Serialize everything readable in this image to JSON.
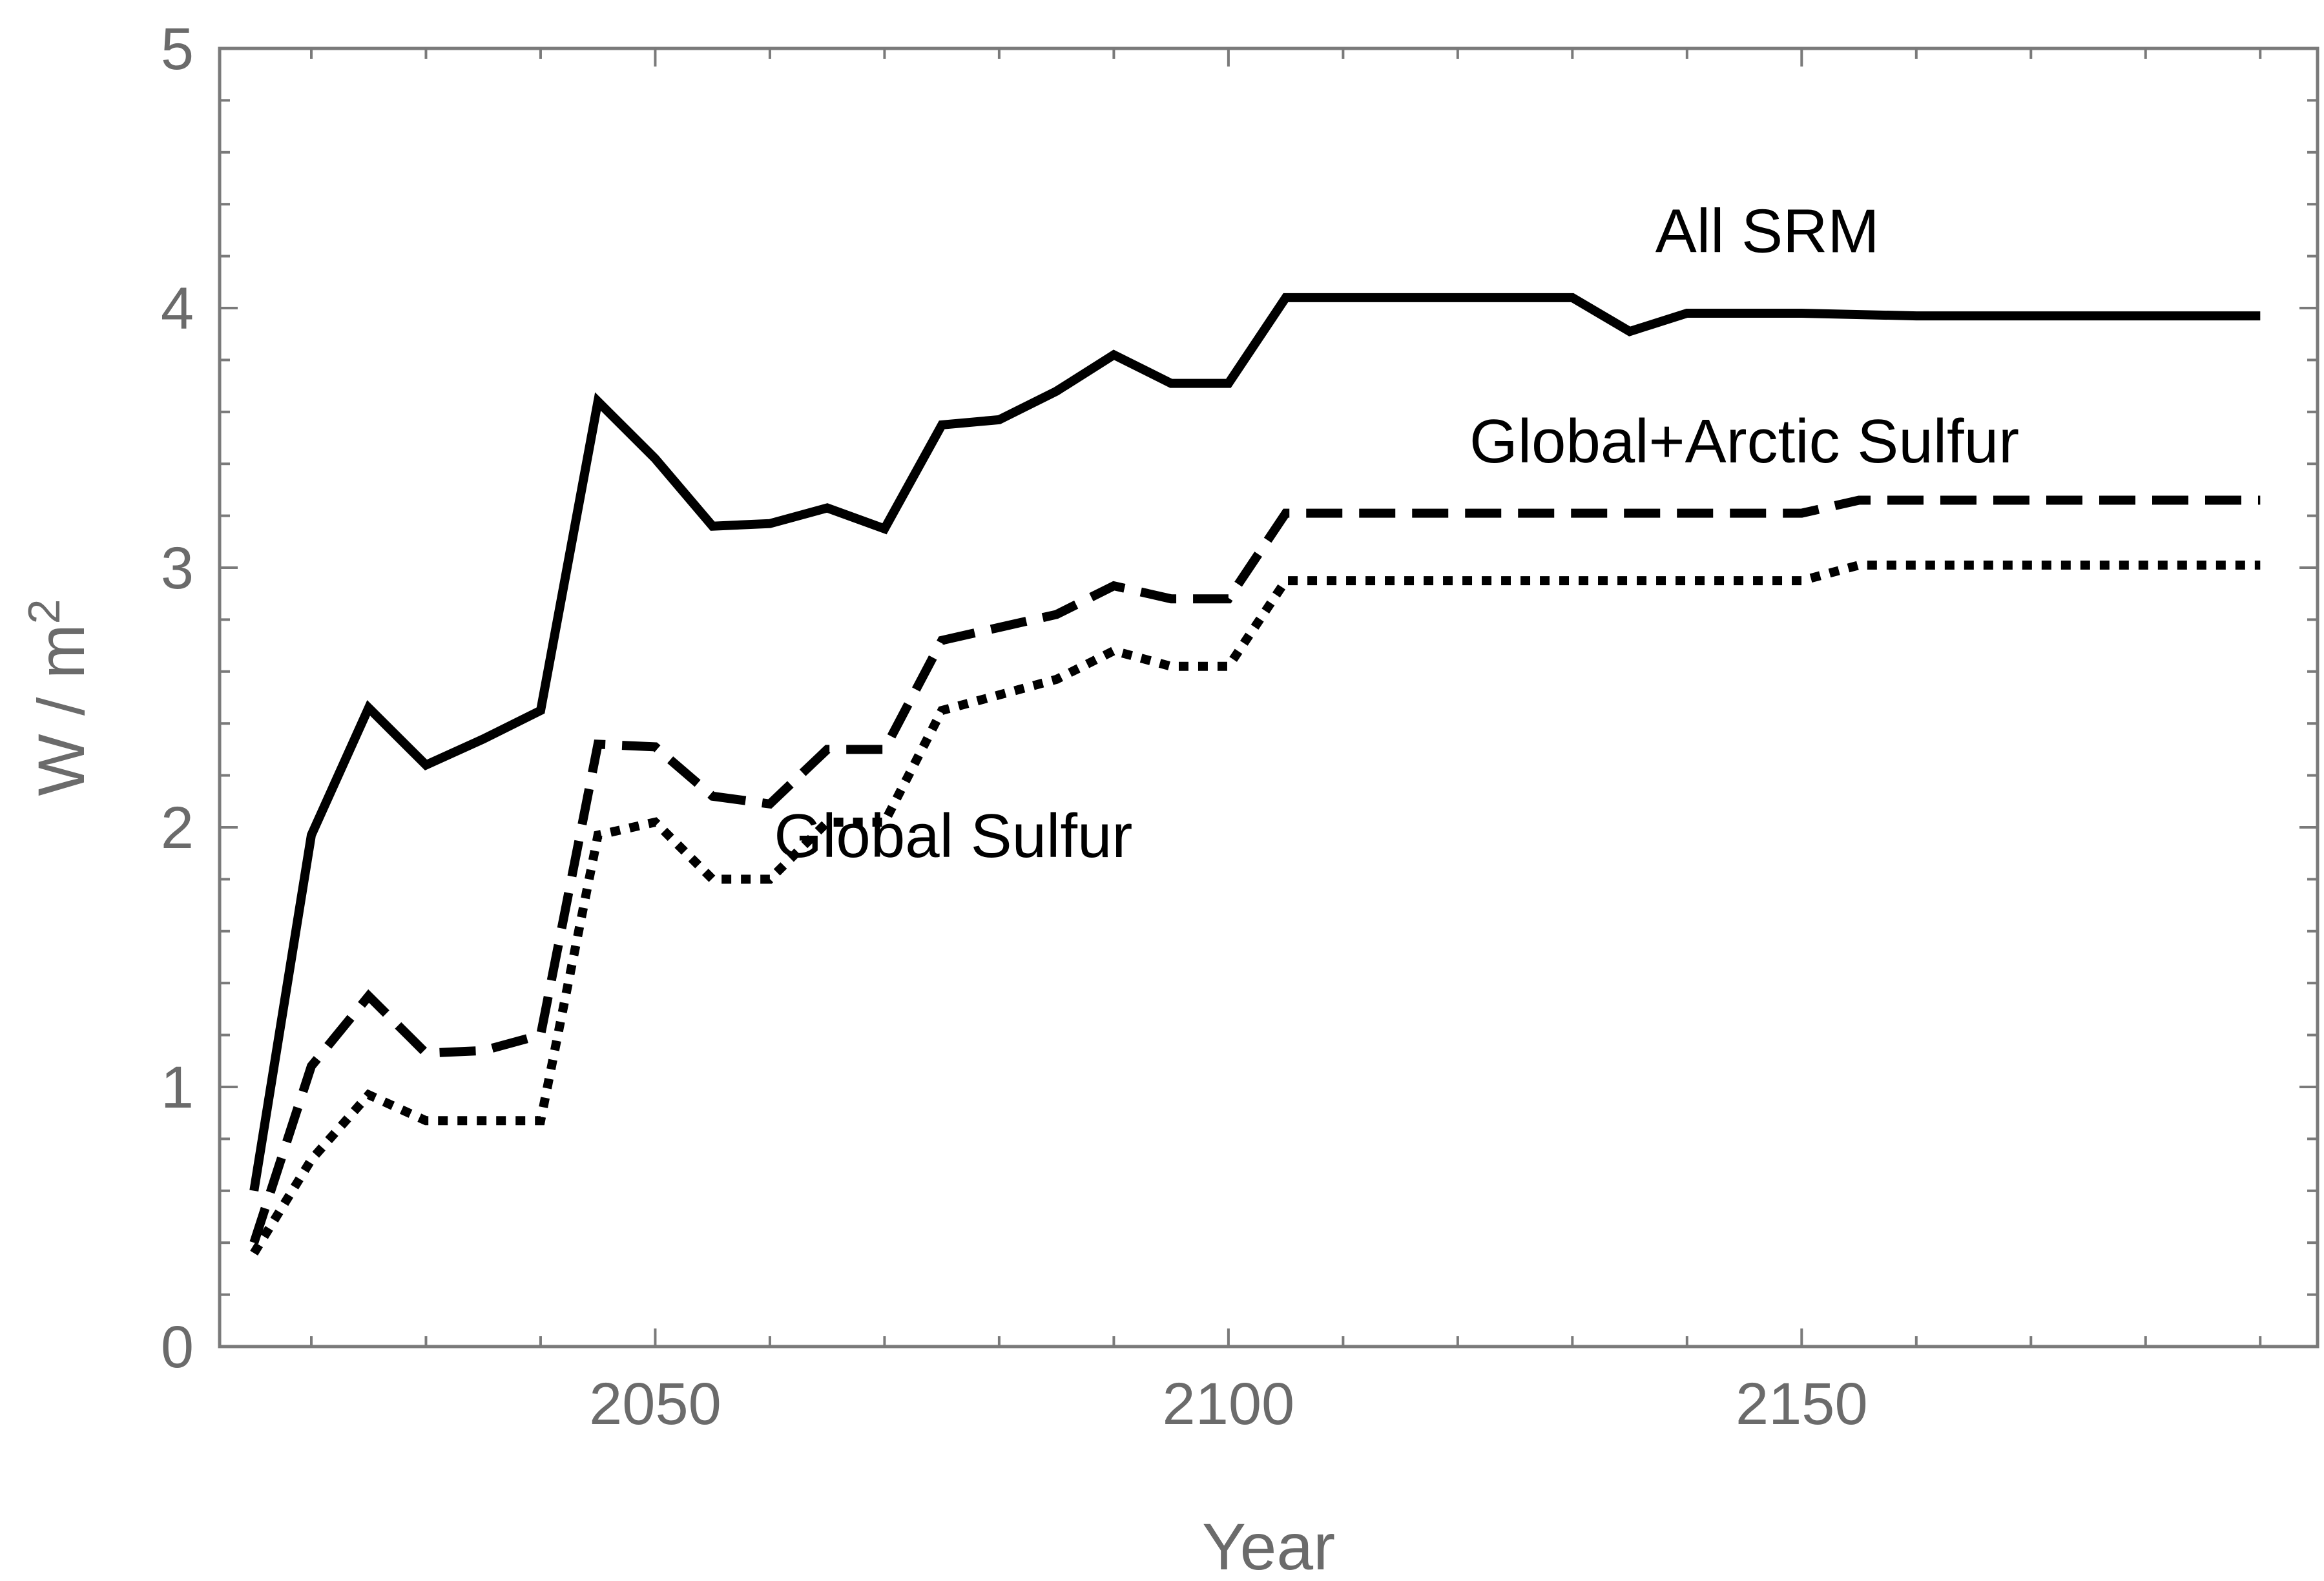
{
  "chart_data": {
    "type": "line",
    "title": "",
    "xlabel": "Year",
    "ylabel": "W / m",
    "ylabel_superscript": "2",
    "xlim": [
      2012,
      2195
    ],
    "ylim": [
      0,
      5
    ],
    "x_ticks": [
      2050,
      2100,
      2150
    ],
    "x_tick_labels": [
      "2050",
      "2100",
      "2150"
    ],
    "x_minor_ticks": [
      2020,
      2030,
      2040,
      2060,
      2070,
      2080,
      2090,
      2110,
      2120,
      2130,
      2140,
      2160,
      2170,
      2180,
      2190
    ],
    "y_ticks": [
      0,
      1,
      2,
      3,
      4,
      5
    ],
    "y_tick_labels": [
      "0",
      "1",
      "2",
      "3",
      "4",
      "5"
    ],
    "y_minor_ticks": [
      0.2,
      0.4,
      0.6,
      0.8,
      1.2,
      1.4,
      1.6,
      1.8,
      2.2,
      2.4,
      2.6,
      2.8,
      3.2,
      3.4,
      3.6,
      3.8,
      4.2,
      4.4,
      4.6,
      4.8
    ],
    "grid": false,
    "series": [
      {
        "name": "All SRM",
        "style": "solid",
        "label_pos": {
          "x": 2147,
          "y": 4.3
        },
        "x": [
          2015,
          2020,
          2025,
          2030,
          2035,
          2040,
          2045,
          2050,
          2055,
          2060,
          2065,
          2070,
          2075,
          2080,
          2085,
          2090,
          2095,
          2100,
          2105,
          2110,
          2115,
          2120,
          2125,
          2130,
          2135,
          2140,
          2150,
          2160,
          2170,
          2180,
          2190
        ],
        "y": [
          0.6,
          1.97,
          2.46,
          2.24,
          2.34,
          2.45,
          3.64,
          3.42,
          3.16,
          3.17,
          3.23,
          3.15,
          3.55,
          3.57,
          3.68,
          3.82,
          3.71,
          3.71,
          4.04,
          4.04,
          4.04,
          4.04,
          4.04,
          4.04,
          3.91,
          3.98,
          3.98,
          3.97,
          3.97,
          3.97,
          3.97
        ]
      },
      {
        "name": "Global+Arctic Sulfur",
        "style": "dashed",
        "label_pos": {
          "x": 2145,
          "y": 3.49
        },
        "x": [
          2015,
          2020,
          2025,
          2030,
          2035,
          2040,
          2045,
          2050,
          2055,
          2060,
          2065,
          2070,
          2075,
          2080,
          2085,
          2090,
          2095,
          2100,
          2105,
          2110,
          2120,
          2130,
          2140,
          2150,
          2155,
          2160,
          2170,
          2180,
          2190
        ],
        "y": [
          0.4,
          1.08,
          1.35,
          1.13,
          1.14,
          1.2,
          2.32,
          2.31,
          2.12,
          2.09,
          2.3,
          2.3,
          2.72,
          2.77,
          2.82,
          2.93,
          2.88,
          2.88,
          3.21,
          3.21,
          3.21,
          3.21,
          3.21,
          3.21,
          3.26,
          3.26,
          3.26,
          3.26,
          3.26
        ]
      },
      {
        "name": "Global Sulfur",
        "style": "dotted",
        "label_pos": {
          "x": 2076,
          "y": 1.97
        },
        "x": [
          2015,
          2020,
          2025,
          2030,
          2035,
          2040,
          2045,
          2050,
          2055,
          2060,
          2065,
          2070,
          2075,
          2080,
          2085,
          2090,
          2095,
          2100,
          2105,
          2110,
          2120,
          2130,
          2140,
          2150,
          2155,
          2160,
          2170,
          2180,
          2190
        ],
        "y": [
          0.36,
          0.72,
          0.97,
          0.87,
          0.87,
          0.87,
          1.97,
          2.02,
          1.8,
          1.8,
          2.02,
          2.02,
          2.45,
          2.51,
          2.57,
          2.68,
          2.62,
          2.62,
          2.95,
          2.95,
          2.95,
          2.95,
          2.95,
          2.95,
          3.01,
          3.01,
          3.01,
          3.01,
          3.01
        ]
      }
    ]
  }
}
